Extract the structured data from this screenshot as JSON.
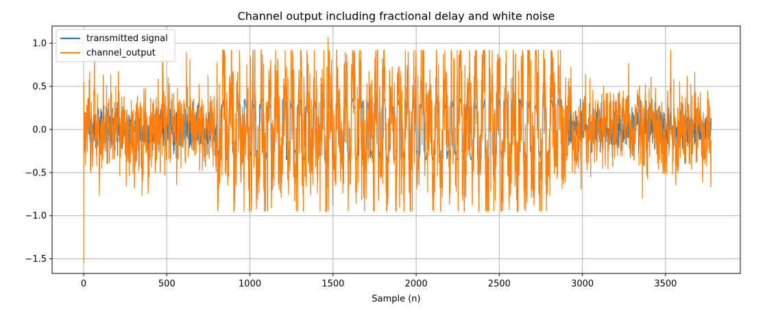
{
  "chart_data": {
    "type": "line",
    "title": "Channel output including fractional delay and white noise",
    "xlabel": "Sample (n)",
    "ylabel": "",
    "xlim": [
      -190,
      3950
    ],
    "ylim": [
      -1.67,
      1.2
    ],
    "xticks": [
      0,
      500,
      1000,
      1500,
      2000,
      2500,
      3000,
      3500
    ],
    "xtick_labels": [
      "0",
      "500",
      "1000",
      "1500",
      "2000",
      "2500",
      "3000",
      "3500"
    ],
    "yticks": [
      1.0,
      0.5,
      0.0,
      -0.5,
      -1.0,
      -1.5
    ],
    "ytick_labels": [
      "1.0",
      "0.5",
      "0.0",
      "−0.5",
      "−1.0",
      "−1.5"
    ],
    "grid": true,
    "legend_position": "top-left",
    "n_samples": 3775,
    "series": [
      {
        "name": "transmitted signal",
        "color": "#1f77b4",
        "description_values": {
          "amplitude_peak": 0.35,
          "active_range": [
            800,
            2900
          ],
          "preamble_noise_range": [
            0,
            800
          ]
        }
      },
      {
        "name": "channel_output",
        "color": "#ff7f0e",
        "description_values": {
          "min": -1.55,
          "min_at": 0,
          "max": 1.07,
          "max_at": 1470
        }
      }
    ]
  }
}
